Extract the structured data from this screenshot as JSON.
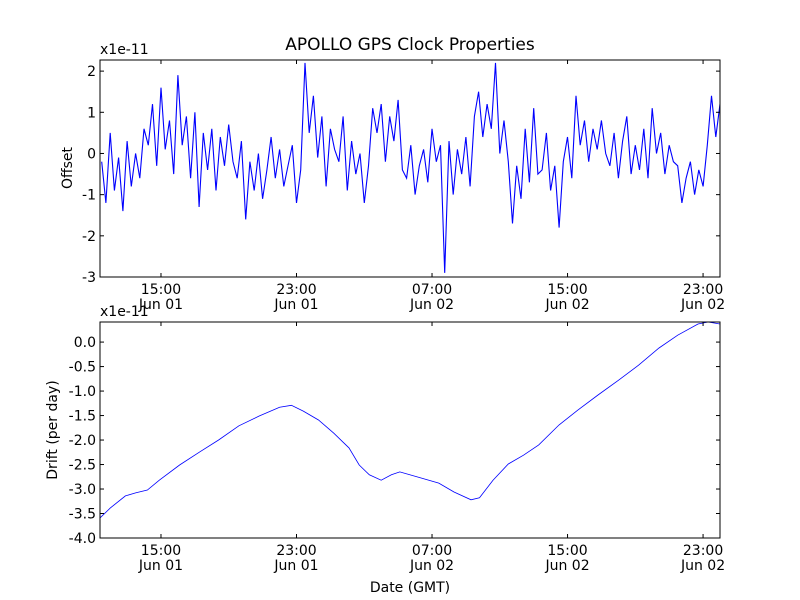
{
  "chart_data": [
    {
      "type": "line",
      "title": "APOLLO GPS Clock Properties",
      "ylabel": "Offset",
      "xlabel": "",
      "offset_text": "x1e-11",
      "xlim_hours": [
        11.4,
        48.0
      ],
      "ylim": [
        -3,
        2.27
      ],
      "yticks": [
        2,
        1,
        0,
        -1,
        -2,
        -3
      ],
      "ytick_labels": [
        "2",
        "1",
        "0",
        "-1",
        "-2",
        "-3"
      ],
      "xticks_hours": [
        15,
        23,
        31,
        39,
        47
      ],
      "xtick_labels": [
        [
          "15:00",
          "Jun 01"
        ],
        [
          "23:00",
          "Jun 01"
        ],
        [
          "07:00",
          "Jun 02"
        ],
        [
          "15:00",
          "Jun 02"
        ],
        [
          "23:00",
          "Jun 02"
        ]
      ],
      "color": "#0000ff",
      "x_start_hours": 11.5,
      "x_step_hours": 0.25,
      "values": [
        -0.2,
        -1.2,
        0.5,
        -0.9,
        -0.1,
        -1.4,
        0.3,
        -0.8,
        0.0,
        -0.6,
        0.6,
        0.2,
        1.2,
        -0.3,
        1.6,
        0.1,
        0.8,
        -0.5,
        1.9,
        0.2,
        0.9,
        -0.6,
        1.0,
        -1.3,
        0.5,
        -0.4,
        0.6,
        -0.9,
        0.4,
        -0.3,
        0.7,
        -0.2,
        -0.6,
        0.3,
        -1.6,
        -0.2,
        -0.9,
        0.0,
        -1.1,
        -0.4,
        0.4,
        -0.6,
        0.1,
        -0.8,
        -0.3,
        0.2,
        -1.2,
        -0.4,
        2.2,
        0.5,
        1.4,
        -0.1,
        0.9,
        -0.8,
        0.6,
        0.1,
        -0.2,
        0.9,
        -0.9,
        0.3,
        -0.5,
        0.0,
        -1.2,
        -0.3,
        1.1,
        0.5,
        1.2,
        -0.2,
        0.9,
        0.3,
        1.3,
        -0.4,
        -0.6,
        0.2,
        -1.0,
        -0.3,
        0.1,
        -0.7,
        0.6,
        -0.2,
        0.2,
        -2.9,
        0.3,
        -1.0,
        0.1,
        -0.5,
        0.4,
        -0.8,
        0.9,
        1.5,
        0.4,
        1.2,
        0.6,
        2.2,
        0.0,
        0.8,
        -0.2,
        -1.7,
        -0.3,
        -1.1,
        0.6,
        -0.7,
        1.1,
        -0.5,
        -0.4,
        0.5,
        -0.9,
        -0.3,
        -1.8,
        -0.2,
        0.4,
        -0.6,
        1.4,
        0.2,
        0.8,
        -0.2,
        0.6,
        0.1,
        0.8,
        0.0,
        -0.3,
        0.5,
        -0.6,
        0.3,
        0.9,
        -0.5,
        0.2,
        -0.4,
        0.6,
        -0.6,
        1.1,
        0.0,
        0.5,
        -0.5,
        0.2,
        -0.2,
        -0.3,
        -1.2,
        -0.6,
        -0.2,
        -1.0,
        -0.4,
        -0.8,
        0.2,
        1.4,
        0.4,
        1.2
      ]
    },
    {
      "type": "line",
      "title": "",
      "ylabel": "Drift (per day)",
      "xlabel": "Date (GMT)",
      "offset_text": "x1e-11",
      "xlim_hours": [
        11.4,
        48.0
      ],
      "ylim": [
        -4.0,
        0.41
      ],
      "yticks": [
        0.0,
        -0.5,
        -1.0,
        -1.5,
        -2.0,
        -2.5,
        -3.0,
        -3.5,
        -4.0
      ],
      "ytick_labels": [
        "0.0",
        "-0.5",
        "-1.0",
        "-1.5",
        "-2.0",
        "-2.5",
        "-3.0",
        "-3.5",
        "-4.0"
      ],
      "xticks_hours": [
        15,
        23,
        31,
        39,
        47
      ],
      "xtick_labels": [
        [
          "15:00",
          "Jun 01"
        ],
        [
          "23:00",
          "Jun 01"
        ],
        [
          "07:00",
          "Jun 02"
        ],
        [
          "15:00",
          "Jun 02"
        ],
        [
          "23:00",
          "Jun 02"
        ]
      ],
      "color": "#0000ff",
      "points": [
        [
          11.4,
          -3.59
        ],
        [
          12.0,
          -3.39
        ],
        [
          12.9,
          -3.14
        ],
        [
          13.5,
          -3.08
        ],
        [
          14.2,
          -3.02
        ],
        [
          14.9,
          -2.82
        ],
        [
          16.1,
          -2.51
        ],
        [
          17.3,
          -2.24
        ],
        [
          18.4,
          -2.0
        ],
        [
          19.6,
          -1.71
        ],
        [
          20.8,
          -1.51
        ],
        [
          22.0,
          -1.33
        ],
        [
          22.7,
          -1.29
        ],
        [
          23.4,
          -1.41
        ],
        [
          24.3,
          -1.59
        ],
        [
          25.2,
          -1.86
        ],
        [
          26.1,
          -2.16
        ],
        [
          26.7,
          -2.51
        ],
        [
          27.3,
          -2.71
        ],
        [
          28.0,
          -2.82
        ],
        [
          28.6,
          -2.71
        ],
        [
          29.1,
          -2.65
        ],
        [
          30.2,
          -2.76
        ],
        [
          31.4,
          -2.88
        ],
        [
          32.3,
          -3.06
        ],
        [
          33.3,
          -3.22
        ],
        [
          33.8,
          -3.18
        ],
        [
          34.6,
          -2.82
        ],
        [
          35.5,
          -2.49
        ],
        [
          36.4,
          -2.31
        ],
        [
          37.3,
          -2.1
        ],
        [
          38.5,
          -1.69
        ],
        [
          39.6,
          -1.39
        ],
        [
          40.8,
          -1.08
        ],
        [
          42.0,
          -0.78
        ],
        [
          43.2,
          -0.47
        ],
        [
          44.4,
          -0.12
        ],
        [
          45.5,
          0.14
        ],
        [
          46.7,
          0.37
        ],
        [
          47.3,
          0.41
        ],
        [
          48.0,
          0.37
        ]
      ]
    }
  ]
}
